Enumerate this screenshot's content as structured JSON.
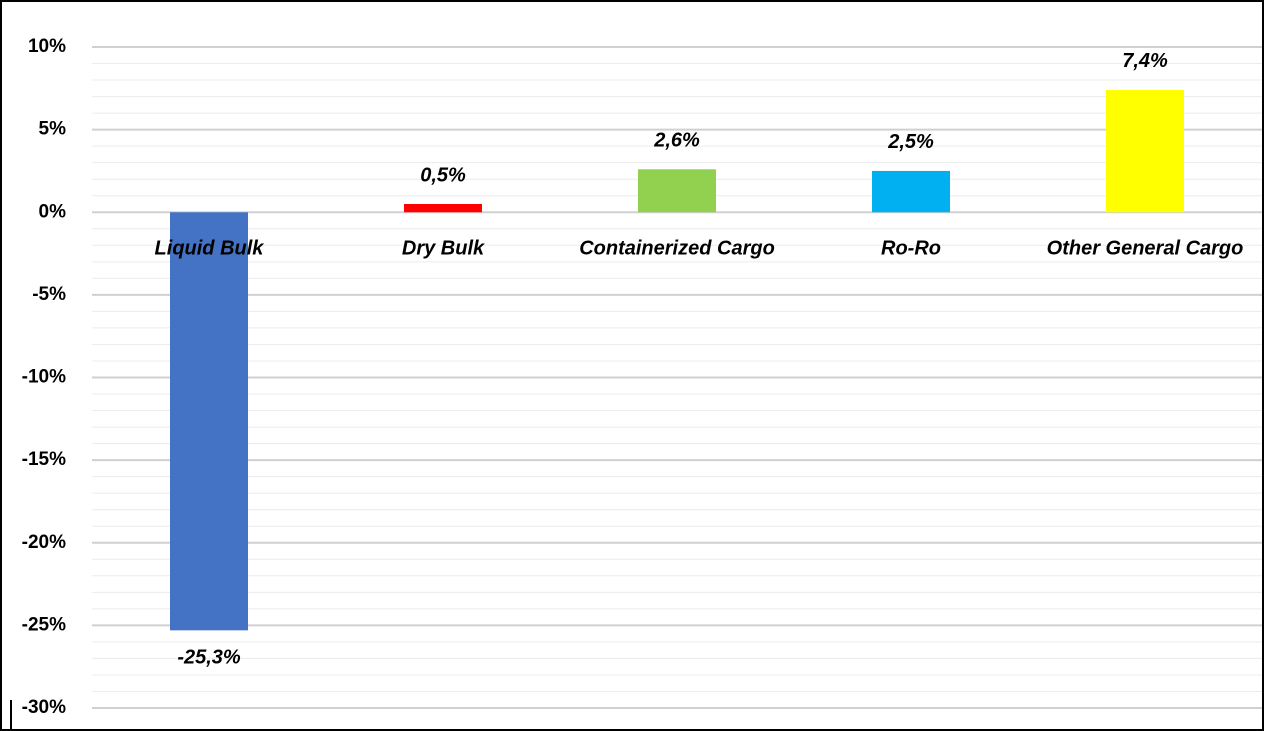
{
  "chart_data": {
    "type": "bar",
    "categories": [
      "Liquid Bulk",
      "Dry Bulk",
      "Containerized Cargo",
      "Ro-Ro",
      "Other General Cargo"
    ],
    "values": [
      -25.3,
      0.5,
      2.6,
      2.5,
      7.4
    ],
    "value_labels": [
      "-25,3%",
      "0,5%",
      "2,6%",
      "2,5%",
      "7,4%"
    ],
    "colors": [
      "#4472c4",
      "#ff0000",
      "#92d050",
      "#00b0f0",
      "#ffff00"
    ],
    "ylim": [
      -30,
      10
    ],
    "yticks": [
      {
        "value": -30,
        "label": "-30%"
      },
      {
        "value": -25,
        "label": "-25%"
      },
      {
        "value": -20,
        "label": "-20%"
      },
      {
        "value": -15,
        "label": "-15%"
      },
      {
        "value": -10,
        "label": "-10%"
      },
      {
        "value": -5,
        "label": "-5%"
      },
      {
        "value": 0,
        "label": "0%"
      },
      {
        "value": 5,
        "label": "5%"
      },
      {
        "value": 10,
        "label": "10%"
      }
    ],
    "grid": true
  }
}
